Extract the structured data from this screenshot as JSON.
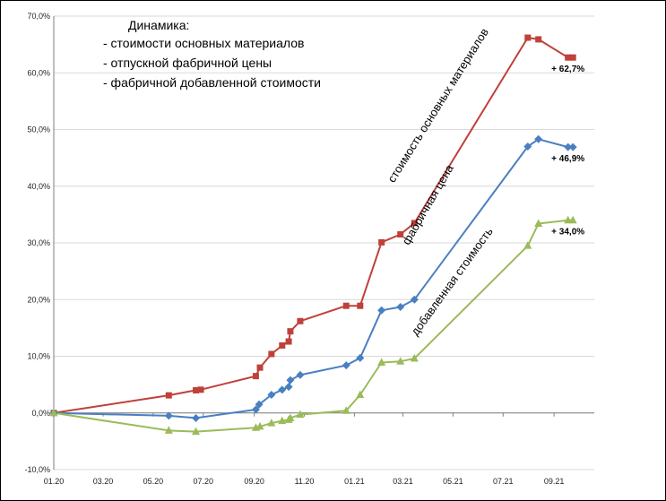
{
  "chart_data": {
    "type": "line",
    "title": "Динамика:",
    "legend_lines": [
      "-     стоимости основных материалов",
      "-     отпускной фабричной цены",
      "-     фабричной добавленной стоимости"
    ],
    "x_axis": {
      "type": "date",
      "tick_labels": [
        "01.20",
        "03.20",
        "05.20",
        "07.20",
        "09.20",
        "11.20",
        "01.21",
        "03.21",
        "05.21",
        "07.21",
        "09.21"
      ],
      "range": [
        "2020-01-01",
        "2021-10-20"
      ]
    },
    "y_axis": {
      "range": [
        -10,
        70
      ],
      "step": 10,
      "tick_labels": [
        "-10,0%",
        "0,0%",
        "10,0%",
        "20,0%",
        "30,0%",
        "40,0%",
        "50,0%",
        "60,0%",
        "70,0%"
      ]
    },
    "grid": "horizontal",
    "series": [
      {
        "name": "стоимость основных материалов",
        "color": "#C0403A",
        "marker": "square",
        "end_label": "+ 62,7%",
        "points": [
          [
            "2020-01-01",
            0
          ],
          [
            "2020-05-20",
            3.1
          ],
          [
            "2020-06-22",
            4.0
          ],
          [
            "2020-06-28",
            4.1
          ],
          [
            "2020-09-03",
            6.5
          ],
          [
            "2020-09-08",
            8.0
          ],
          [
            "2020-09-22",
            10.4
          ],
          [
            "2020-10-05",
            11.9
          ],
          [
            "2020-10-13",
            12.6
          ],
          [
            "2020-10-15",
            14.4
          ],
          [
            "2020-10-27",
            16.2
          ],
          [
            "2020-12-22",
            18.9
          ],
          [
            "2021-01-08",
            18.9
          ],
          [
            "2021-02-03",
            30.1
          ],
          [
            "2021-02-26",
            31.5
          ],
          [
            "2021-03-15",
            33.5
          ],
          [
            "2021-07-31",
            66.2
          ],
          [
            "2021-08-13",
            65.9
          ],
          [
            "2021-09-18",
            62.7
          ],
          [
            "2021-09-24",
            62.7
          ]
        ]
      },
      {
        "name": "фабричная цена",
        "color": "#4A7FC1",
        "marker": "diamond",
        "end_label": "+ 46,9%",
        "points": [
          [
            "2020-01-01",
            0
          ],
          [
            "2020-05-20",
            -0.5
          ],
          [
            "2020-06-22",
            -0.9
          ],
          [
            "2020-09-03",
            0.6
          ],
          [
            "2020-09-07",
            1.5
          ],
          [
            "2020-09-22",
            3.2
          ],
          [
            "2020-10-05",
            4.1
          ],
          [
            "2020-10-13",
            4.6
          ],
          [
            "2020-10-15",
            5.8
          ],
          [
            "2020-10-27",
            6.7
          ],
          [
            "2020-12-22",
            8.4
          ],
          [
            "2021-01-08",
            9.7
          ],
          [
            "2021-02-03",
            18.1
          ],
          [
            "2021-02-26",
            18.7
          ],
          [
            "2021-03-15",
            20.0
          ],
          [
            "2021-07-31",
            47.0
          ],
          [
            "2021-08-13",
            48.3
          ],
          [
            "2021-09-18",
            46.9
          ],
          [
            "2021-09-24",
            46.9
          ]
        ]
      },
      {
        "name": "добавленная стоимость",
        "color": "#9BBB59",
        "marker": "triangle",
        "end_label": "+ 34,0%",
        "points": [
          [
            "2020-01-01",
            0
          ],
          [
            "2020-05-20",
            -3.1
          ],
          [
            "2020-06-22",
            -3.3
          ],
          [
            "2020-09-03",
            -2.6
          ],
          [
            "2020-09-08",
            -2.4
          ],
          [
            "2020-09-22",
            -1.8
          ],
          [
            "2020-10-05",
            -1.4
          ],
          [
            "2020-10-13",
            -1.2
          ],
          [
            "2020-10-15",
            -0.9
          ],
          [
            "2020-10-27",
            -0.3
          ],
          [
            "2020-12-22",
            0.4
          ],
          [
            "2021-01-08",
            3.2
          ],
          [
            "2021-02-03",
            8.9
          ],
          [
            "2021-02-26",
            9.1
          ],
          [
            "2021-03-15",
            9.6
          ],
          [
            "2021-07-31",
            29.5
          ],
          [
            "2021-08-13",
            33.4
          ],
          [
            "2021-09-18",
            34.0
          ],
          [
            "2021-09-24",
            34.0
          ]
        ]
      }
    ]
  }
}
